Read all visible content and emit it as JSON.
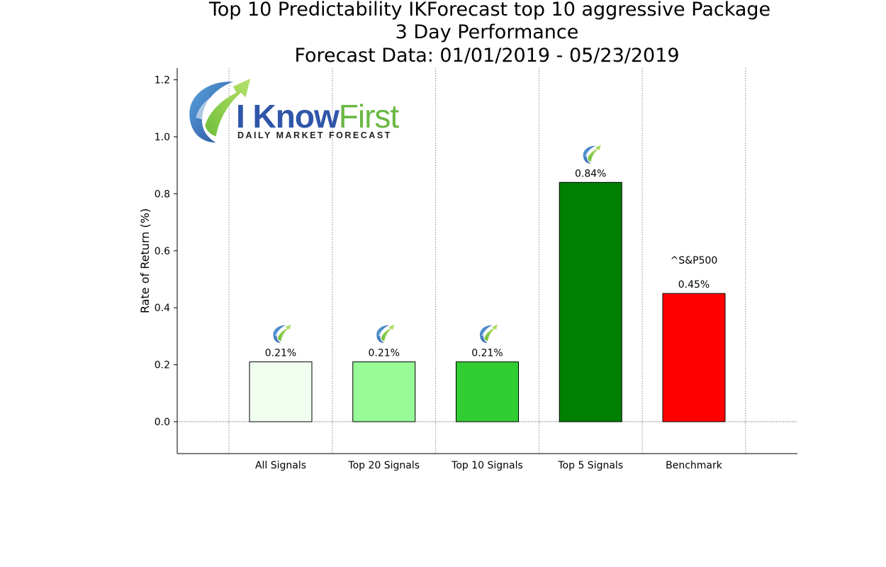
{
  "chart_data": {
    "type": "bar",
    "title_lines": [
      "Top 10 Predictability IKForecast top 10 aggressive Package",
      "3 Day Performance",
      "Forecast Data: 01/01/2019 - 05/23/2019"
    ],
    "ylabel": "Rate of Return (%)",
    "xlabel": "",
    "ylim": [
      -0.11,
      1.24
    ],
    "yticks": [
      0.0,
      0.2,
      0.4,
      0.6,
      0.8,
      1.0,
      1.2
    ],
    "ytick_labels": [
      "0.0",
      "0.2",
      "0.4",
      "0.6",
      "0.8",
      "1.0",
      "1.2"
    ],
    "categories": [
      "All Signals",
      "Top 20 Signals",
      "Top 10 Signals",
      "Top 5 Signals",
      "Benchmark"
    ],
    "values": [
      0.21,
      0.21,
      0.21,
      0.84,
      0.45
    ],
    "value_labels": [
      "0.21%",
      "0.21%",
      "0.21%",
      "0.84%",
      "0.45%"
    ],
    "bar_colors": [
      "#f0fff0",
      "#98fb98",
      "#32cd32",
      "#008000",
      "#ff0000"
    ],
    "benchmark_name": "^S&P500",
    "grid": "vertical dotted separators",
    "logo": {
      "text_main": "I Know",
      "text_accent": "First",
      "tagline": "Daily Market Forecast"
    }
  }
}
